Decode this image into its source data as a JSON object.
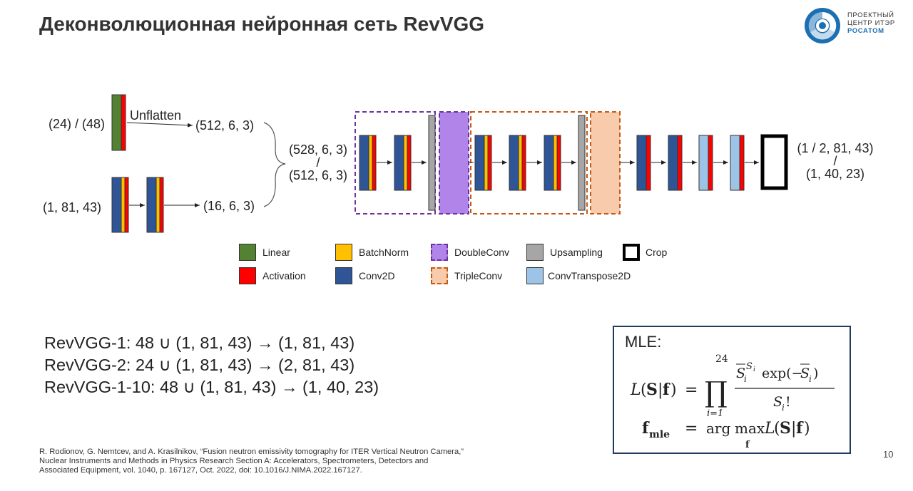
{
  "title": "Деконволюционная нейронная сеть RevVGG",
  "logo": {
    "line1": "ПРОЕКТНЫЙ",
    "line2": "ЦЕНТР ИТЭР",
    "brand": "РОСАТОМ"
  },
  "diagram": {
    "input_top": "(24) / (48)",
    "unflatten": "Unflatten",
    "out_top": "(512, 6, 3)",
    "input_bottom": "(1, 81, 43)",
    "out_bottom": "(16, 6, 3)",
    "concat_line1": "(528, 6, 3)",
    "concat_sep": "/",
    "concat_line2": "(512, 6, 3)",
    "final_line1": "(1 / 2, 81, 43)",
    "final_sep": "/",
    "final_line2": "(1, 40, 23)"
  },
  "legend": [
    {
      "label": "Linear",
      "color": "#548235",
      "style": "solid"
    },
    {
      "label": "Activation",
      "color": "#ff0000",
      "style": "solid"
    },
    {
      "label": "BatchNorm",
      "color": "#ffc000",
      "style": "solid"
    },
    {
      "label": "Conv2D",
      "color": "#2f5597",
      "style": "solid"
    },
    {
      "label": "DoubleConv",
      "color": "#b084e8",
      "style": "dashed"
    },
    {
      "label": "TripleConv",
      "color": "#f8cbad",
      "style": "dashed"
    },
    {
      "label": "Upsampling",
      "color": "#a6a6a6",
      "style": "solid"
    },
    {
      "label": "ConvTranspose2D",
      "color": "#9dc3e6",
      "style": "solid"
    },
    {
      "label": "Crop",
      "color": "#ffffff",
      "style": "outline"
    }
  ],
  "models": [
    "RevVGG-1: 48 ∪ (1, 81, 43) → (1, 81, 43)",
    "RevVGG-2: 24 ∪ (1, 81, 43) → (2, 81, 43)",
    "RevVGG-1-10: 48 ∪ (1, 81, 43) → (1, 40, 23)"
  ],
  "mle": {
    "title": "MLE:",
    "prod_upper": "24",
    "prod_lower": "i=1"
  },
  "reference": "R. Rodionov, G. Nemtcev, and A. Krasilnikov, “Fusion neutron emissivity tomography for ITER Vertical Neutron Camera,” Nuclear Instruments and Methods in Physics Research Section A: Accelerators, Spectrometers, Detectors and Associated Equipment, vol. 1040, p. 167127, Oct. 2022, doi: 10.1016/J.NIMA.2022.167127.",
  "page_number": "10"
}
